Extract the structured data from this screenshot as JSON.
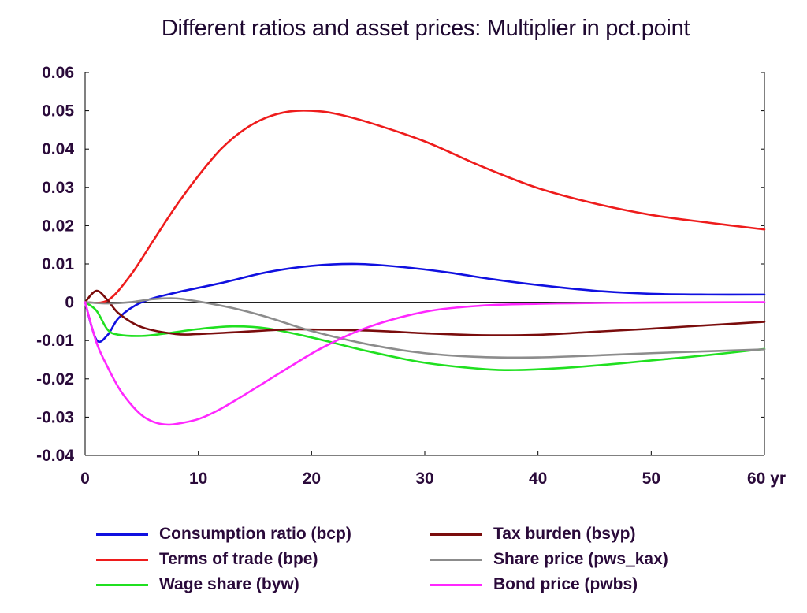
{
  "title": "Different ratios and asset prices: Multiplier in pct.point",
  "chart_data": {
    "type": "line",
    "xlim": [
      0,
      60
    ],
    "ylim": [
      -0.04,
      0.06
    ],
    "x_ticks": [
      0,
      10,
      20,
      30,
      40,
      50,
      60
    ],
    "x_tick_labels": [
      "0",
      "10",
      "20",
      "30",
      "40",
      "50",
      "60 yr"
    ],
    "y_ticks": [
      0.06,
      0.05,
      0.04,
      0.03,
      0.02,
      0.01,
      0,
      -0.01,
      -0.02,
      -0.03,
      -0.04
    ],
    "y_tick_labels": [
      "0.06",
      "0.05",
      "0.04",
      "0.03",
      "0.02",
      "0.01",
      "0",
      "-0.01",
      "-0.02",
      "-0.03",
      "-0.04"
    ],
    "grid": false,
    "zero_line": true,
    "legend_position": "bottom",
    "series": [
      {
        "name": "Consumption ratio (bcp)",
        "color": "#1010e0",
        "points": [
          [
            0,
            0
          ],
          [
            1,
            -0.0098
          ],
          [
            2,
            -0.0085
          ],
          [
            3,
            -0.004
          ],
          [
            5,
            0
          ],
          [
            8,
            0.0025
          ],
          [
            12,
            0.005
          ],
          [
            16,
            0.0078
          ],
          [
            20,
            0.0095
          ],
          [
            24,
            0.01
          ],
          [
            28,
            0.0092
          ],
          [
            32,
            0.0078
          ],
          [
            36,
            0.006
          ],
          [
            40,
            0.0045
          ],
          [
            45,
            0.003
          ],
          [
            50,
            0.0022
          ],
          [
            55,
            0.002
          ],
          [
            60,
            0.002
          ]
        ]
      },
      {
        "name": "Terms of trade (bpe)",
        "color": "#ee1c1c",
        "points": [
          [
            0,
            0
          ],
          [
            2,
            0.0005
          ],
          [
            4,
            0.007
          ],
          [
            6,
            0.016
          ],
          [
            8,
            0.025
          ],
          [
            10,
            0.033
          ],
          [
            12,
            0.04
          ],
          [
            14,
            0.045
          ],
          [
            16,
            0.0482
          ],
          [
            18,
            0.0498
          ],
          [
            20,
            0.05
          ],
          [
            22,
            0.0493
          ],
          [
            25,
            0.047
          ],
          [
            30,
            0.042
          ],
          [
            35,
            0.0355
          ],
          [
            40,
            0.0298
          ],
          [
            45,
            0.0258
          ],
          [
            50,
            0.0228
          ],
          [
            55,
            0.0208
          ],
          [
            60,
            0.019
          ]
        ]
      },
      {
        "name": "Wage share (byw)",
        "color": "#20e020",
        "points": [
          [
            0,
            0
          ],
          [
            1,
            -0.0022
          ],
          [
            2,
            -0.0072
          ],
          [
            3,
            -0.0085
          ],
          [
            5,
            -0.0088
          ],
          [
            7,
            -0.0082
          ],
          [
            10,
            -0.007
          ],
          [
            13,
            -0.0063
          ],
          [
            16,
            -0.0068
          ],
          [
            20,
            -0.0092
          ],
          [
            25,
            -0.0128
          ],
          [
            30,
            -0.0158
          ],
          [
            35,
            -0.0174
          ],
          [
            38,
            -0.0177
          ],
          [
            42,
            -0.0172
          ],
          [
            46,
            -0.0163
          ],
          [
            50,
            -0.0152
          ],
          [
            55,
            -0.0138
          ],
          [
            60,
            -0.0122
          ]
        ]
      },
      {
        "name": "Tax burden (bsyp)",
        "color": "#7a0c0c",
        "points": [
          [
            0,
            0
          ],
          [
            1,
            0.003
          ],
          [
            2,
            0.0005
          ],
          [
            3,
            -0.003
          ],
          [
            5,
            -0.0065
          ],
          [
            8,
            -0.0083
          ],
          [
            10,
            -0.0083
          ],
          [
            14,
            -0.0077
          ],
          [
            18,
            -0.0071
          ],
          [
            22,
            -0.0072
          ],
          [
            26,
            -0.0075
          ],
          [
            30,
            -0.0081
          ],
          [
            35,
            -0.0086
          ],
          [
            40,
            -0.0085
          ],
          [
            45,
            -0.0077
          ],
          [
            50,
            -0.0069
          ],
          [
            55,
            -0.006
          ],
          [
            60,
            -0.0051
          ]
        ]
      },
      {
        "name": "Share price (pws_kax)",
        "color": "#8c8c8c",
        "points": [
          [
            0,
            0
          ],
          [
            2,
            -0.0003
          ],
          [
            4,
            0
          ],
          [
            6,
            0.0008
          ],
          [
            8,
            0.001
          ],
          [
            10,
            0.0002
          ],
          [
            13,
            -0.0015
          ],
          [
            16,
            -0.0038
          ],
          [
            20,
            -0.0075
          ],
          [
            25,
            -0.011
          ],
          [
            30,
            -0.0133
          ],
          [
            35,
            -0.0143
          ],
          [
            40,
            -0.0144
          ],
          [
            45,
            -0.0139
          ],
          [
            50,
            -0.0133
          ],
          [
            55,
            -0.0128
          ],
          [
            60,
            -0.0123
          ]
        ]
      },
      {
        "name": "Bond price (pwbs)",
        "color": "#ff28ff",
        "points": [
          [
            0,
            0
          ],
          [
            1,
            -0.0105
          ],
          [
            2,
            -0.017
          ],
          [
            3,
            -0.0225
          ],
          [
            4,
            -0.0265
          ],
          [
            5,
            -0.0295
          ],
          [
            6,
            -0.0312
          ],
          [
            7,
            -0.0319
          ],
          [
            8,
            -0.0318
          ],
          [
            10,
            -0.0305
          ],
          [
            12,
            -0.0278
          ],
          [
            15,
            -0.0225
          ],
          [
            18,
            -0.017
          ],
          [
            21,
            -0.0118
          ],
          [
            25,
            -0.0065
          ],
          [
            30,
            -0.0025
          ],
          [
            35,
            -0.0009
          ],
          [
            40,
            -0.0004
          ],
          [
            45,
            -0.0002
          ],
          [
            50,
            -0.0001
          ],
          [
            60,
            0
          ]
        ]
      }
    ]
  }
}
